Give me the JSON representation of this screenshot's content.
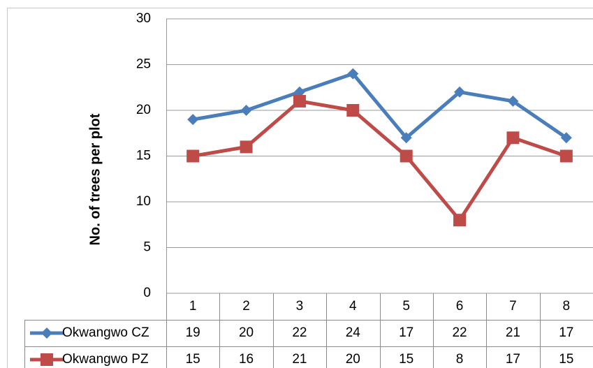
{
  "chart_data": {
    "type": "line",
    "y_label": "No. of trees per plot",
    "categories": [
      "1",
      "2",
      "3",
      "4",
      "5",
      "6",
      "7",
      "8"
    ],
    "series": [
      {
        "name": "Okwangwo CZ",
        "color": "#4a7ebb",
        "marker": "diamond",
        "values": [
          19,
          20,
          22,
          24,
          17,
          22,
          21,
          17
        ]
      },
      {
        "name": "Okwangwo PZ",
        "color": "#be4b48",
        "marker": "square",
        "values": [
          15,
          16,
          21,
          20,
          15,
          8,
          17,
          15
        ]
      }
    ],
    "ylim": [
      0,
      30
    ],
    "yticks": [
      0,
      5,
      10,
      15,
      20,
      25,
      30
    ],
    "grid": true
  }
}
